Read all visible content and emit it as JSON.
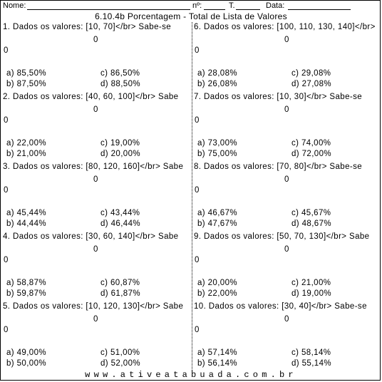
{
  "header": {
    "name_label": "Nome:",
    "number_label": "nº:",
    "class_label": "T.",
    "date_label": "Data:"
  },
  "title": "6.10.4b Porcentagem - Total de Lista de Valores",
  "zero_value": "0",
  "questions": [
    {
      "statement": "1. Dados os valores: [10, 70]</br> Sabe-se",
      "a": "a) 85,50%",
      "b": "b) 87,50%",
      "c": "c) 86,50%",
      "d": "d) 88,50%"
    },
    {
      "statement": "6. Dados os valores: [100, 110, 130, 140]</br>",
      "a": "a) 28,08%",
      "b": "b) 26,08%",
      "c": "c) 29,08%",
      "d": "d) 27,08%"
    },
    {
      "statement": "2. Dados os valores: [40, 60, 100]</br> Sabe",
      "a": "a) 22,00%",
      "b": "b) 21,00%",
      "c": "c) 19,00%",
      "d": "d) 20,00%"
    },
    {
      "statement": "7. Dados os valores: [10, 30]</br> Sabe-se",
      "a": "a) 73,00%",
      "b": "b) 75,00%",
      "c": "c) 74,00%",
      "d": "d) 72,00%"
    },
    {
      "statement": "3. Dados os valores: [80, 120, 160]</br> Sabe",
      "a": "a) 45,44%",
      "b": "b) 44,44%",
      "c": "c) 43,44%",
      "d": "d) 46,44%"
    },
    {
      "statement": "8. Dados os valores: [70, 80]</br> Sabe-se",
      "a": "a) 46,67%",
      "b": "b) 47,67%",
      "c": "c) 45,67%",
      "d": "d) 48,67%"
    },
    {
      "statement": "4. Dados os valores: [30, 60, 140]</br> Sabe",
      "a": "a) 58,87%",
      "b": "b) 59,87%",
      "c": "c) 60,87%",
      "d": "d) 61,87%"
    },
    {
      "statement": "9. Dados os valores: [50, 70, 130]</br> Sabe",
      "a": "a) 20,00%",
      "b": "b) 22,00%",
      "c": "c) 21,00%",
      "d": "d) 19,00%"
    },
    {
      "statement": "5. Dados os valores: [10, 120, 130]</br> Sabe",
      "a": "a) 49,00%",
      "b": "b) 50,00%",
      "c": "c) 51,00%",
      "d": "d) 52,00%"
    },
    {
      "statement": "10. Dados os valores: [30, 40]</br> Sabe-se",
      "a": "a) 57,14%",
      "b": "b) 56,14%",
      "c": "c) 58,14%",
      "d": "d) 55,14%"
    }
  ],
  "footer": "www.ativeatabuada.com.br"
}
